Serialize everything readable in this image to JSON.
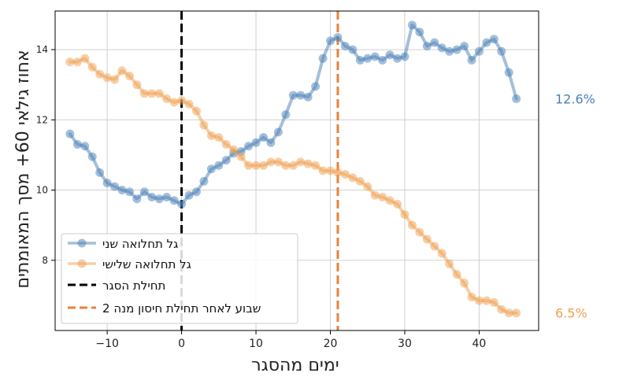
{
  "chart_data": {
    "type": "line",
    "title": "",
    "xlabel": "ימים מהסגר",
    "ylabel": "אחוז גילאי 60+ מסך המאומתים",
    "xlim": [
      -17,
      48
    ],
    "ylim": [
      6.0,
      15.1
    ],
    "x_ticks": [
      -10,
      0,
      10,
      20,
      30,
      40
    ],
    "y_ticks": [
      8,
      10,
      12,
      14
    ],
    "x_tick_labels": [
      "−10",
      "0",
      "10",
      "20",
      "30",
      "40"
    ],
    "y_tick_labels": [
      "8",
      "10",
      "12",
      "14"
    ],
    "grid": true,
    "legend_position": "lower-left",
    "series": [
      {
        "name": "גל תחלואה שני",
        "color": "#4a7fb5",
        "end_label": "12.6%",
        "x": [
          -15,
          -14,
          -13,
          -12,
          -11,
          -10,
          -9,
          -8,
          -7,
          -6,
          -5,
          -4,
          -3,
          -2,
          -1,
          0,
          1,
          2,
          3,
          4,
          5,
          6,
          7,
          8,
          9,
          10,
          11,
          12,
          13,
          14,
          15,
          16,
          17,
          18,
          19,
          20,
          21,
          22,
          23,
          24,
          25,
          26,
          27,
          28,
          29,
          30,
          31,
          32,
          33,
          34,
          35,
          36,
          37,
          38,
          39,
          40,
          41,
          42,
          43,
          44,
          45
        ],
        "y": [
          11.6,
          11.3,
          11.25,
          10.95,
          10.5,
          10.2,
          10.1,
          10.0,
          9.95,
          9.75,
          9.95,
          9.8,
          9.75,
          9.8,
          9.7,
          9.6,
          9.85,
          9.95,
          10.25,
          10.6,
          10.7,
          10.85,
          11.05,
          11.1,
          11.25,
          11.35,
          11.5,
          11.35,
          11.65,
          12.15,
          12.7,
          12.7,
          12.65,
          12.95,
          13.75,
          14.25,
          14.35,
          14.1,
          14.0,
          13.7,
          13.75,
          13.8,
          13.7,
          13.85,
          13.75,
          13.8,
          14.7,
          14.5,
          14.1,
          14.2,
          14.05,
          13.95,
          14.0,
          14.1,
          13.7,
          13.95,
          14.2,
          14.3,
          13.95,
          13.35,
          12.6
        ]
      },
      {
        "name": "גל תחלואה שלישי",
        "color": "#f0a050",
        "end_label": "6.5%",
        "x": [
          -15,
          -14,
          -13,
          -12,
          -11,
          -10,
          -9,
          -8,
          -7,
          -6,
          -5,
          -4,
          -3,
          -2,
          -1,
          0,
          1,
          2,
          3,
          4,
          5,
          6,
          7,
          8,
          9,
          10,
          11,
          12,
          13,
          14,
          15,
          16,
          17,
          18,
          19,
          20,
          21,
          22,
          23,
          24,
          25,
          26,
          27,
          28,
          29,
          30,
          31,
          32,
          33,
          34,
          35,
          36,
          37,
          38,
          39,
          40,
          41,
          42,
          43,
          44,
          45
        ],
        "y": [
          13.65,
          13.65,
          13.75,
          13.5,
          13.3,
          13.2,
          13.15,
          13.4,
          13.25,
          13.0,
          12.75,
          12.75,
          12.75,
          12.6,
          12.5,
          12.55,
          12.45,
          12.25,
          11.85,
          11.55,
          11.5,
          11.3,
          11.15,
          10.95,
          10.7,
          10.7,
          10.7,
          10.8,
          10.8,
          10.7,
          10.7,
          10.8,
          10.75,
          10.7,
          10.55,
          10.55,
          10.5,
          10.45,
          10.35,
          10.25,
          10.1,
          9.85,
          9.8,
          9.7,
          9.6,
          9.3,
          9.0,
          8.8,
          8.6,
          8.4,
          8.2,
          7.9,
          7.6,
          7.35,
          6.95,
          6.85,
          6.85,
          6.8,
          6.6,
          6.5,
          6.5
        ]
      }
    ],
    "vlines": [
      {
        "name": "תחילת הסגר",
        "x": 0,
        "color": "#000000",
        "style": "dashed"
      },
      {
        "name": "שבוע לאחר תחילת חיסון מנה 2",
        "x": 21,
        "color": "#e8823a",
        "style": "dashed"
      }
    ]
  }
}
